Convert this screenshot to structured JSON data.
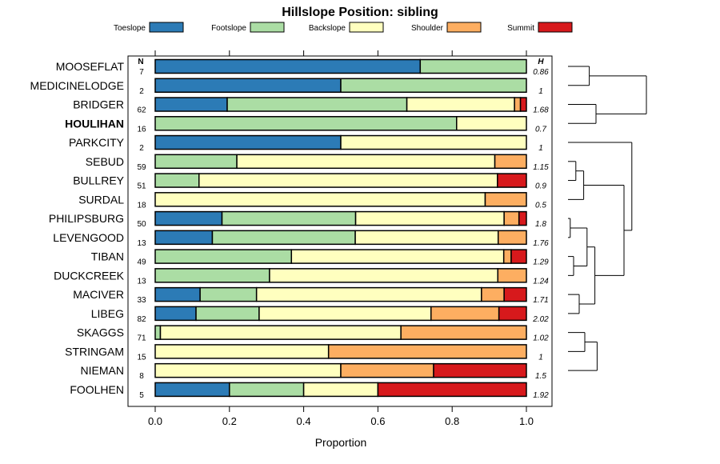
{
  "chart_data": {
    "type": "bar",
    "orientation": "horizontal-stacked",
    "title": "Hillslope Position: sibling",
    "xlabel": "Proportion",
    "xlim": [
      0,
      1
    ],
    "xticks": [
      "0.0",
      "0.2",
      "0.4",
      "0.6",
      "0.8",
      "1.0"
    ],
    "xtick_values": [
      0,
      0.2,
      0.4,
      0.6,
      0.8,
      1.0
    ],
    "n_header": "N",
    "h_header": "H",
    "highlight": "HOULIHAN",
    "legend_placement": "top",
    "series": [
      {
        "name": "Toeslope",
        "color": "#2c7bb6"
      },
      {
        "name": "Footslope",
        "color": "#abdda4"
      },
      {
        "name": "Backslope",
        "color": "#ffffbf"
      },
      {
        "name": "Shoulder",
        "color": "#fdae61"
      },
      {
        "name": "Summit",
        "color": "#d7191c"
      }
    ],
    "rows": [
      {
        "label": "MOOSEFLAT",
        "n": "7",
        "h": "0.86",
        "values": [
          0.714,
          0.286,
          0,
          0,
          0
        ]
      },
      {
        "label": "MEDICINELODGE",
        "n": "2",
        "h": "1",
        "values": [
          0.5,
          0.5,
          0,
          0,
          0
        ]
      },
      {
        "label": "BRIDGER",
        "n": "62",
        "h": "1.68",
        "values": [
          0.194,
          0.484,
          0.29,
          0.016,
          0.016
        ]
      },
      {
        "label": "HOULIHAN",
        "n": "16",
        "h": "0.7",
        "values": [
          0,
          0.812,
          0.188,
          0,
          0
        ]
      },
      {
        "label": "PARKCITY",
        "n": "2",
        "h": "1",
        "values": [
          0.5,
          0,
          0.5,
          0,
          0
        ]
      },
      {
        "label": "SEBUD",
        "n": "59",
        "h": "1.15",
        "values": [
          0,
          0.22,
          0.695,
          0.085,
          0
        ]
      },
      {
        "label": "BULLREY",
        "n": "51",
        "h": "0.9",
        "values": [
          0,
          0.118,
          0.804,
          0,
          0.078
        ]
      },
      {
        "label": "SURDAL",
        "n": "18",
        "h": "0.5",
        "values": [
          0,
          0,
          0.889,
          0.111,
          0
        ]
      },
      {
        "label": "PHILIPSBURG",
        "n": "50",
        "h": "1.8",
        "values": [
          0.18,
          0.36,
          0.4,
          0.04,
          0.02
        ]
      },
      {
        "label": "LEVENGOOD",
        "n": "13",
        "h": "1.76",
        "values": [
          0.154,
          0.385,
          0.385,
          0.076,
          0
        ]
      },
      {
        "label": "TIBAN",
        "n": "49",
        "h": "1.29",
        "values": [
          0,
          0.367,
          0.572,
          0.02,
          0.041
        ]
      },
      {
        "label": "DUCKCREEK",
        "n": "13",
        "h": "1.24",
        "values": [
          0,
          0.308,
          0.615,
          0.077,
          0
        ]
      },
      {
        "label": "MACIVER",
        "n": "33",
        "h": "1.71",
        "values": [
          0.121,
          0.152,
          0.606,
          0.061,
          0.06
        ]
      },
      {
        "label": "LIBEG",
        "n": "82",
        "h": "2.02",
        "values": [
          0.11,
          0.17,
          0.463,
          0.183,
          0.074
        ]
      },
      {
        "label": "SKAGGS",
        "n": "71",
        "h": "1.02",
        "values": [
          0,
          0.014,
          0.648,
          0.338,
          0
        ]
      },
      {
        "label": "STRINGAM",
        "n": "15",
        "h": "1",
        "values": [
          0,
          0,
          0.467,
          0.533,
          0
        ]
      },
      {
        "label": "NIEMAN",
        "n": "8",
        "h": "1.5",
        "values": [
          0,
          0,
          0.5,
          0.25,
          0.25
        ]
      },
      {
        "label": "FOOLHEN",
        "n": "5",
        "h": "1.92",
        "values": [
          0.2,
          0.2,
          0.2,
          0,
          0.4
        ]
      }
    ],
    "dendrogram": {
      "type": "hierarchical-clustering",
      "leaves_in_order": true,
      "merges": [
        {
          "a": [
            0
          ],
          "b": [
            1
          ],
          "height": 0.19
        },
        {
          "a": [
            2
          ],
          "b": [
            3
          ],
          "height": 0.25
        },
        {
          "a": [
            0,
            1
          ],
          "b": [
            2,
            3
          ],
          "height": 0.7
        },
        {
          "a": [
            5
          ],
          "b": [
            6
          ],
          "height": 0.07
        },
        {
          "a": [
            5,
            6
          ],
          "b": [
            7
          ],
          "height": 0.14
        },
        {
          "a": [
            8
          ],
          "b": [
            9
          ],
          "height": 0.02
        },
        {
          "a": [
            10
          ],
          "b": [
            11
          ],
          "height": 0.05
        },
        {
          "a": [
            8,
            9
          ],
          "b": [
            10,
            11
          ],
          "height": 0.17
        },
        {
          "a": [
            12
          ],
          "b": [
            13
          ],
          "height": 0.1
        },
        {
          "a": [
            8,
            9,
            10,
            11
          ],
          "b": [
            12,
            13
          ],
          "height": 0.24
        },
        {
          "a": [
            5,
            6,
            7
          ],
          "b": [
            8,
            9,
            10,
            11,
            12,
            13
          ],
          "height": 0.5
        },
        {
          "a": [
            14
          ],
          "b": [
            15
          ],
          "height": 0.15
        },
        {
          "a": [
            14,
            15
          ],
          "b": [
            16
          ],
          "height": 0.26
        },
        {
          "a": [
            4
          ],
          "b": [
            5,
            6,
            7,
            8,
            9,
            10,
            11,
            12,
            13
          ],
          "height": 0.57
        },
        {
          "a": [
            4,
            5,
            6,
            7,
            8,
            9,
            10,
            11,
            12,
            13
          ],
          "b": [
            14,
            15,
            16,
            17
          ],
          "height": 0.78
        },
        {
          "a": [
            0,
            1,
            2,
            3
          ],
          "b": [
            4,
            5,
            6,
            7,
            8,
            9,
            10,
            11,
            12,
            13,
            14,
            15,
            16,
            17
          ],
          "height": 1.0
        }
      ]
    }
  }
}
